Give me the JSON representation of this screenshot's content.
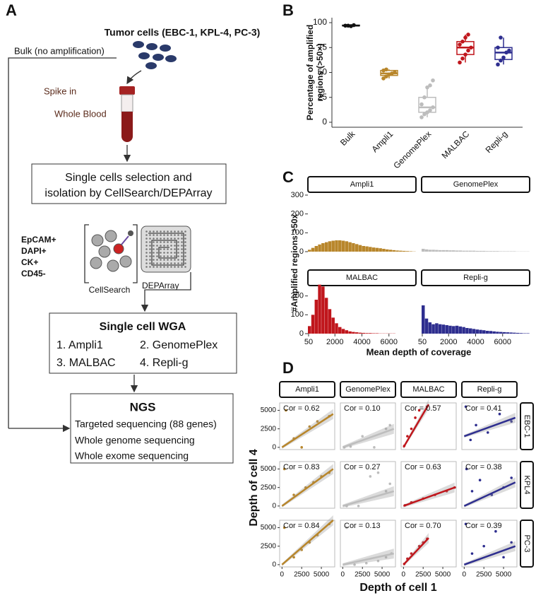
{
  "panel_a": {
    "label": "A",
    "title": "Tumor cells (EBC-1, KPL-4, PC-3)",
    "bulk": "Bulk (no amplification)",
    "spike": "Spike in",
    "blood": "Whole Blood",
    "selection": [
      "Single cells selection and",
      "isolation by CellSearch/DEPArray"
    ],
    "markers": [
      "EpCAM+",
      "DAPI+",
      "CK+",
      "CD45-"
    ],
    "cellsearch": "CellSearch",
    "deparray": "DEPArray",
    "wga": {
      "title": "Single cell WGA",
      "items": [
        "1. Ampli1",
        "2. GenomePlex",
        "3. MALBAC",
        "4. Repli-g"
      ]
    },
    "ngs": {
      "title": "NGS",
      "items": [
        "Targeted sequencing (88 genes)",
        "Whole genome sequencing",
        "Whole exome sequencing"
      ]
    }
  },
  "chart_data": [
    {
      "type": "box",
      "label": "B",
      "ylabel": [
        "Percentage of amplified",
        "regions (>50×)"
      ],
      "categories": [
        "Bulk",
        "Ampli1",
        "GenomePlex",
        "MALBAC",
        "Repli-g"
      ],
      "ylim": [
        -5,
        105
      ],
      "yticks": [
        0,
        25,
        50,
        75,
        100
      ],
      "boxes": [
        {
          "color": "#111111",
          "min": 96,
          "q1": 96.8,
          "median": 97,
          "q3": 97.5,
          "max": 98,
          "points": [
            97,
            97,
            96.5,
            97.5
          ]
        },
        {
          "color": "#b8862b",
          "min": 44,
          "q1": 47,
          "median": 49,
          "q3": 52,
          "max": 53,
          "points": [
            44,
            46,
            48,
            49,
            50,
            52,
            53
          ]
        },
        {
          "color": "#bdbdbd",
          "min": 5,
          "q1": 10,
          "median": 15,
          "q3": 25,
          "max": 35,
          "points": [
            5,
            8,
            10,
            12,
            15,
            18,
            25,
            35,
            37,
            42
          ]
        },
        {
          "color": "#c0161c",
          "min": 60,
          "q1": 68,
          "median": 75,
          "q3": 81,
          "max": 88,
          "points": [
            60,
            64,
            68,
            72,
            75,
            78,
            81,
            85,
            88
          ]
        },
        {
          "color": "#2e2e8f",
          "min": 58,
          "q1": 63,
          "median": 70,
          "q3": 75,
          "max": 85,
          "points": [
            58,
            62,
            65,
            70,
            72,
            75,
            85
          ]
        }
      ]
    },
    {
      "type": "histogram",
      "label": "C",
      "xlabel": "Mean depth of coverage",
      "ylabel": "#Amplified regions >50x",
      "xlim": [
        0,
        8000
      ],
      "xticks": [
        50,
        2000,
        4000,
        6000
      ],
      "ylim": [
        0,
        300
      ],
      "yticks": [
        0,
        100,
        200,
        300
      ],
      "bins": [
        0,
        250,
        500,
        750,
        1000,
        1250,
        1500,
        1750,
        2000,
        2250,
        2500,
        2750,
        3000,
        3250,
        3500,
        3750,
        4000,
        4250,
        4500,
        4750,
        5000,
        5250,
        5500,
        5750,
        6000,
        6250,
        6500,
        6750,
        7000,
        7250,
        7500,
        7750,
        8000
      ],
      "series": [
        {
          "name": "Ampli1",
          "color": "#b8862b",
          "values": [
            10,
            20,
            30,
            38,
            45,
            50,
            55,
            58,
            60,
            60,
            58,
            55,
            50,
            45,
            40,
            35,
            30,
            28,
            25,
            22,
            20,
            18,
            15,
            12,
            10,
            8,
            6,
            5,
            4,
            3,
            2,
            1
          ]
        },
        {
          "name": "GenomePlex",
          "color": "#bdbdbd",
          "values": [
            15,
            12,
            10,
            10,
            9,
            8,
            8,
            8,
            7,
            7,
            6,
            6,
            5,
            5,
            5,
            5,
            4,
            4,
            4,
            3,
            3,
            3,
            3,
            2,
            2,
            2,
            2,
            2,
            1,
            1,
            1,
            1
          ]
        },
        {
          "name": "MALBAC",
          "color": "#c0161c",
          "values": [
            40,
            100,
            180,
            260,
            250,
            190,
            130,
            85,
            55,
            35,
            25,
            18,
            12,
            9,
            7,
            5,
            4,
            3,
            3,
            2,
            2,
            1,
            1,
            1,
            1,
            1,
            0,
            0,
            0,
            0,
            0,
            0
          ]
        },
        {
          "name": "Repli-g",
          "color": "#2e2e8f",
          "values": [
            150,
            80,
            60,
            50,
            55,
            50,
            48,
            45,
            42,
            40,
            42,
            38,
            35,
            30,
            28,
            25,
            22,
            20,
            18,
            15,
            14,
            12,
            10,
            9,
            8,
            7,
            6,
            5,
            4,
            3,
            2,
            2
          ]
        }
      ]
    },
    {
      "type": "scatter",
      "label": "D",
      "xlabel": "Depth of cell 1",
      "ylabel": "Depth of cell 4",
      "xlim": [
        -300,
        6700
      ],
      "xticks": [
        0,
        2500,
        5000
      ],
      "ylim": [
        -300,
        6000
      ],
      "yticks": [
        0,
        2500,
        5000
      ],
      "row_labels": [
        "EBC-1",
        "KPL4",
        "PC-3"
      ],
      "series": [
        {
          "name": "Ampli1",
          "color": "#b8862b",
          "panels": [
            {
              "annotation": "Cor = 0.62",
              "x": [
                500,
                1500,
                2500,
                3500,
                4500,
                6000
              ],
              "y": [
                5000,
                1200,
                0,
                2800,
                3500,
                4200
              ],
              "fit_x": [
                0,
                6500
              ],
              "fit_y": [
                0,
                4500
              ]
            },
            {
              "annotation": "Cor = 0.83",
              "x": [
                300,
                1500,
                3000,
                4000,
                5000,
                6000
              ],
              "y": [
                5000,
                1500,
                2500,
                3200,
                4000,
                4500
              ],
              "fit_x": [
                0,
                6500
              ],
              "fit_y": [
                0,
                5000
              ]
            },
            {
              "annotation": "Cor = 0.84",
              "x": [
                300,
                1500,
                2500,
                3500,
                4500,
                6000
              ],
              "y": [
                5000,
                1000,
                2000,
                3000,
                4000,
                5500
              ],
              "fit_x": [
                0,
                6500
              ],
              "fit_y": [
                0,
                6000
              ]
            }
          ]
        },
        {
          "name": "GenomePlex",
          "color": "#bdbdbd",
          "panels": [
            {
              "annotation": "Cor = 0.10",
              "x": [
                200,
                1000,
                2500,
                4000,
                5500,
                6000
              ],
              "y": [
                0,
                100,
                1500,
                0,
                2500,
                3000
              ],
              "fit_x": [
                0,
                6500
              ],
              "fit_y": [
                0,
                2500
              ]
            },
            {
              "annotation": "Cor = 0.27",
              "x": [
                500,
                2000,
                3500,
                4500,
                5500,
                6000
              ],
              "y": [
                0,
                0,
                4000,
                4500,
                2000,
                3000
              ],
              "fit_x": [
                0,
                6500
              ],
              "fit_y": [
                0,
                2000
              ]
            },
            {
              "annotation": "Cor = 0.13",
              "x": [
                500,
                1500,
                3000,
                4500,
                5500,
                6200
              ],
              "y": [
                5000,
                0,
                200,
                500,
                1000,
                1500
              ],
              "fit_x": [
                0,
                6500
              ],
              "fit_y": [
                0,
                1500
              ]
            }
          ]
        },
        {
          "name": "MALBAC",
          "color": "#c0161c",
          "panels": [
            {
              "annotation": "Cor = 0.57",
              "x": [
                100,
                500,
                1000,
                1500,
                2000,
                3000
              ],
              "y": [
                200,
                1500,
                2500,
                4000,
                5000,
                5500
              ],
              "fit_x": [
                0,
                3200
              ],
              "fit_y": [
                0,
                5800
              ]
            },
            {
              "annotation": "Cor = 0.63",
              "x": [
                200,
                1000,
                2500,
                4000,
                5500,
                6500
              ],
              "y": [
                100,
                500,
                1000,
                1500,
                2000,
                2500
              ],
              "fit_x": [
                0,
                6500
              ],
              "fit_y": [
                0,
                2500
              ]
            },
            {
              "annotation": "Cor = 0.70",
              "x": [
                100,
                500,
                1000,
                2000,
                2500,
                3000
              ],
              "y": [
                100,
                800,
                1500,
                2500,
                3000,
                3500
              ],
              "fit_x": [
                0,
                3200
              ],
              "fit_y": [
                0,
                3600
              ]
            }
          ]
        },
        {
          "name": "Repli-g",
          "color": "#2e2e8f",
          "panels": [
            {
              "annotation": "Cor = 0.41",
              "x": [
                200,
                800,
                1500,
                3000,
                4500,
                6000
              ],
              "y": [
                5500,
                1000,
                3000,
                2000,
                4500,
                3500
              ],
              "fit_x": [
                0,
                6500
              ],
              "fit_y": [
                1500,
                4000
              ]
            },
            {
              "annotation": "Cor = 0.38",
              "x": [
                300,
                1000,
                2000,
                3500,
                5000,
                6000
              ],
              "y": [
                5000,
                2000,
                3500,
                1500,
                2500,
                3800
              ],
              "fit_x": [
                0,
                6500
              ],
              "fit_y": [
                0,
                3200
              ]
            },
            {
              "annotation": "Cor = 0.39",
              "x": [
                200,
                1000,
                2500,
                4000,
                5000,
                6000
              ],
              "y": [
                5500,
                1500,
                2500,
                4500,
                1000,
                3000
              ],
              "fit_x": [
                0,
                6500
              ],
              "fit_y": [
                0,
                2500
              ]
            }
          ]
        }
      ]
    }
  ]
}
